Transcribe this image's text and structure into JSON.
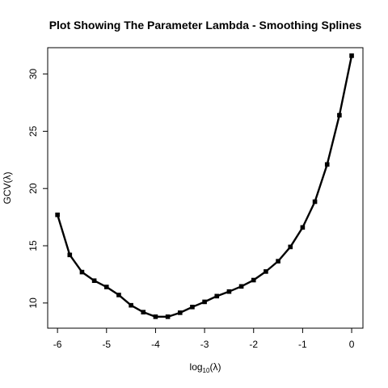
{
  "chart_data": {
    "type": "line",
    "title": "Plot Showing The Parameter Lambda - Smoothing Splines",
    "xlabel": {
      "base": "log",
      "sub": "10",
      "rest": "(λ)"
    },
    "ylabel": "GCV(λ)",
    "xlim": [
      -6.2,
      0.23
    ],
    "ylim": [
      7.8,
      32.3
    ],
    "xticks": [
      -6,
      -5,
      -4,
      -3,
      -2,
      -1,
      0
    ],
    "xtick_labels": [
      "-6",
      "-5",
      "-4",
      "-3",
      "-2",
      "-1",
      "0"
    ],
    "yticks": [
      10,
      15,
      20,
      25,
      30
    ],
    "ytick_labels": [
      "10",
      "15",
      "20",
      "25",
      "30"
    ],
    "grid": false,
    "legend": "none",
    "line_color": "#000000",
    "marker": "filled-square",
    "series": [
      {
        "x": [
          -6.0,
          -5.75,
          -5.5,
          -5.25,
          -5.0,
          -4.75,
          -4.5,
          -4.25,
          -4.0,
          -3.75,
          -3.5,
          -3.25,
          -3.0,
          -2.75,
          -2.5,
          -2.25,
          -2.0,
          -1.75,
          -1.5,
          -1.25,
          -1.0,
          -0.75,
          -0.5,
          -0.25,
          0.0
        ],
        "values": [
          17.7,
          14.2,
          12.7,
          11.95,
          11.4,
          10.7,
          9.8,
          9.2,
          8.8,
          8.8,
          9.15,
          9.65,
          10.1,
          10.6,
          11.0,
          11.45,
          12.0,
          12.75,
          13.65,
          14.9,
          16.6,
          18.85,
          22.1,
          26.4,
          31.6
        ]
      }
    ]
  }
}
